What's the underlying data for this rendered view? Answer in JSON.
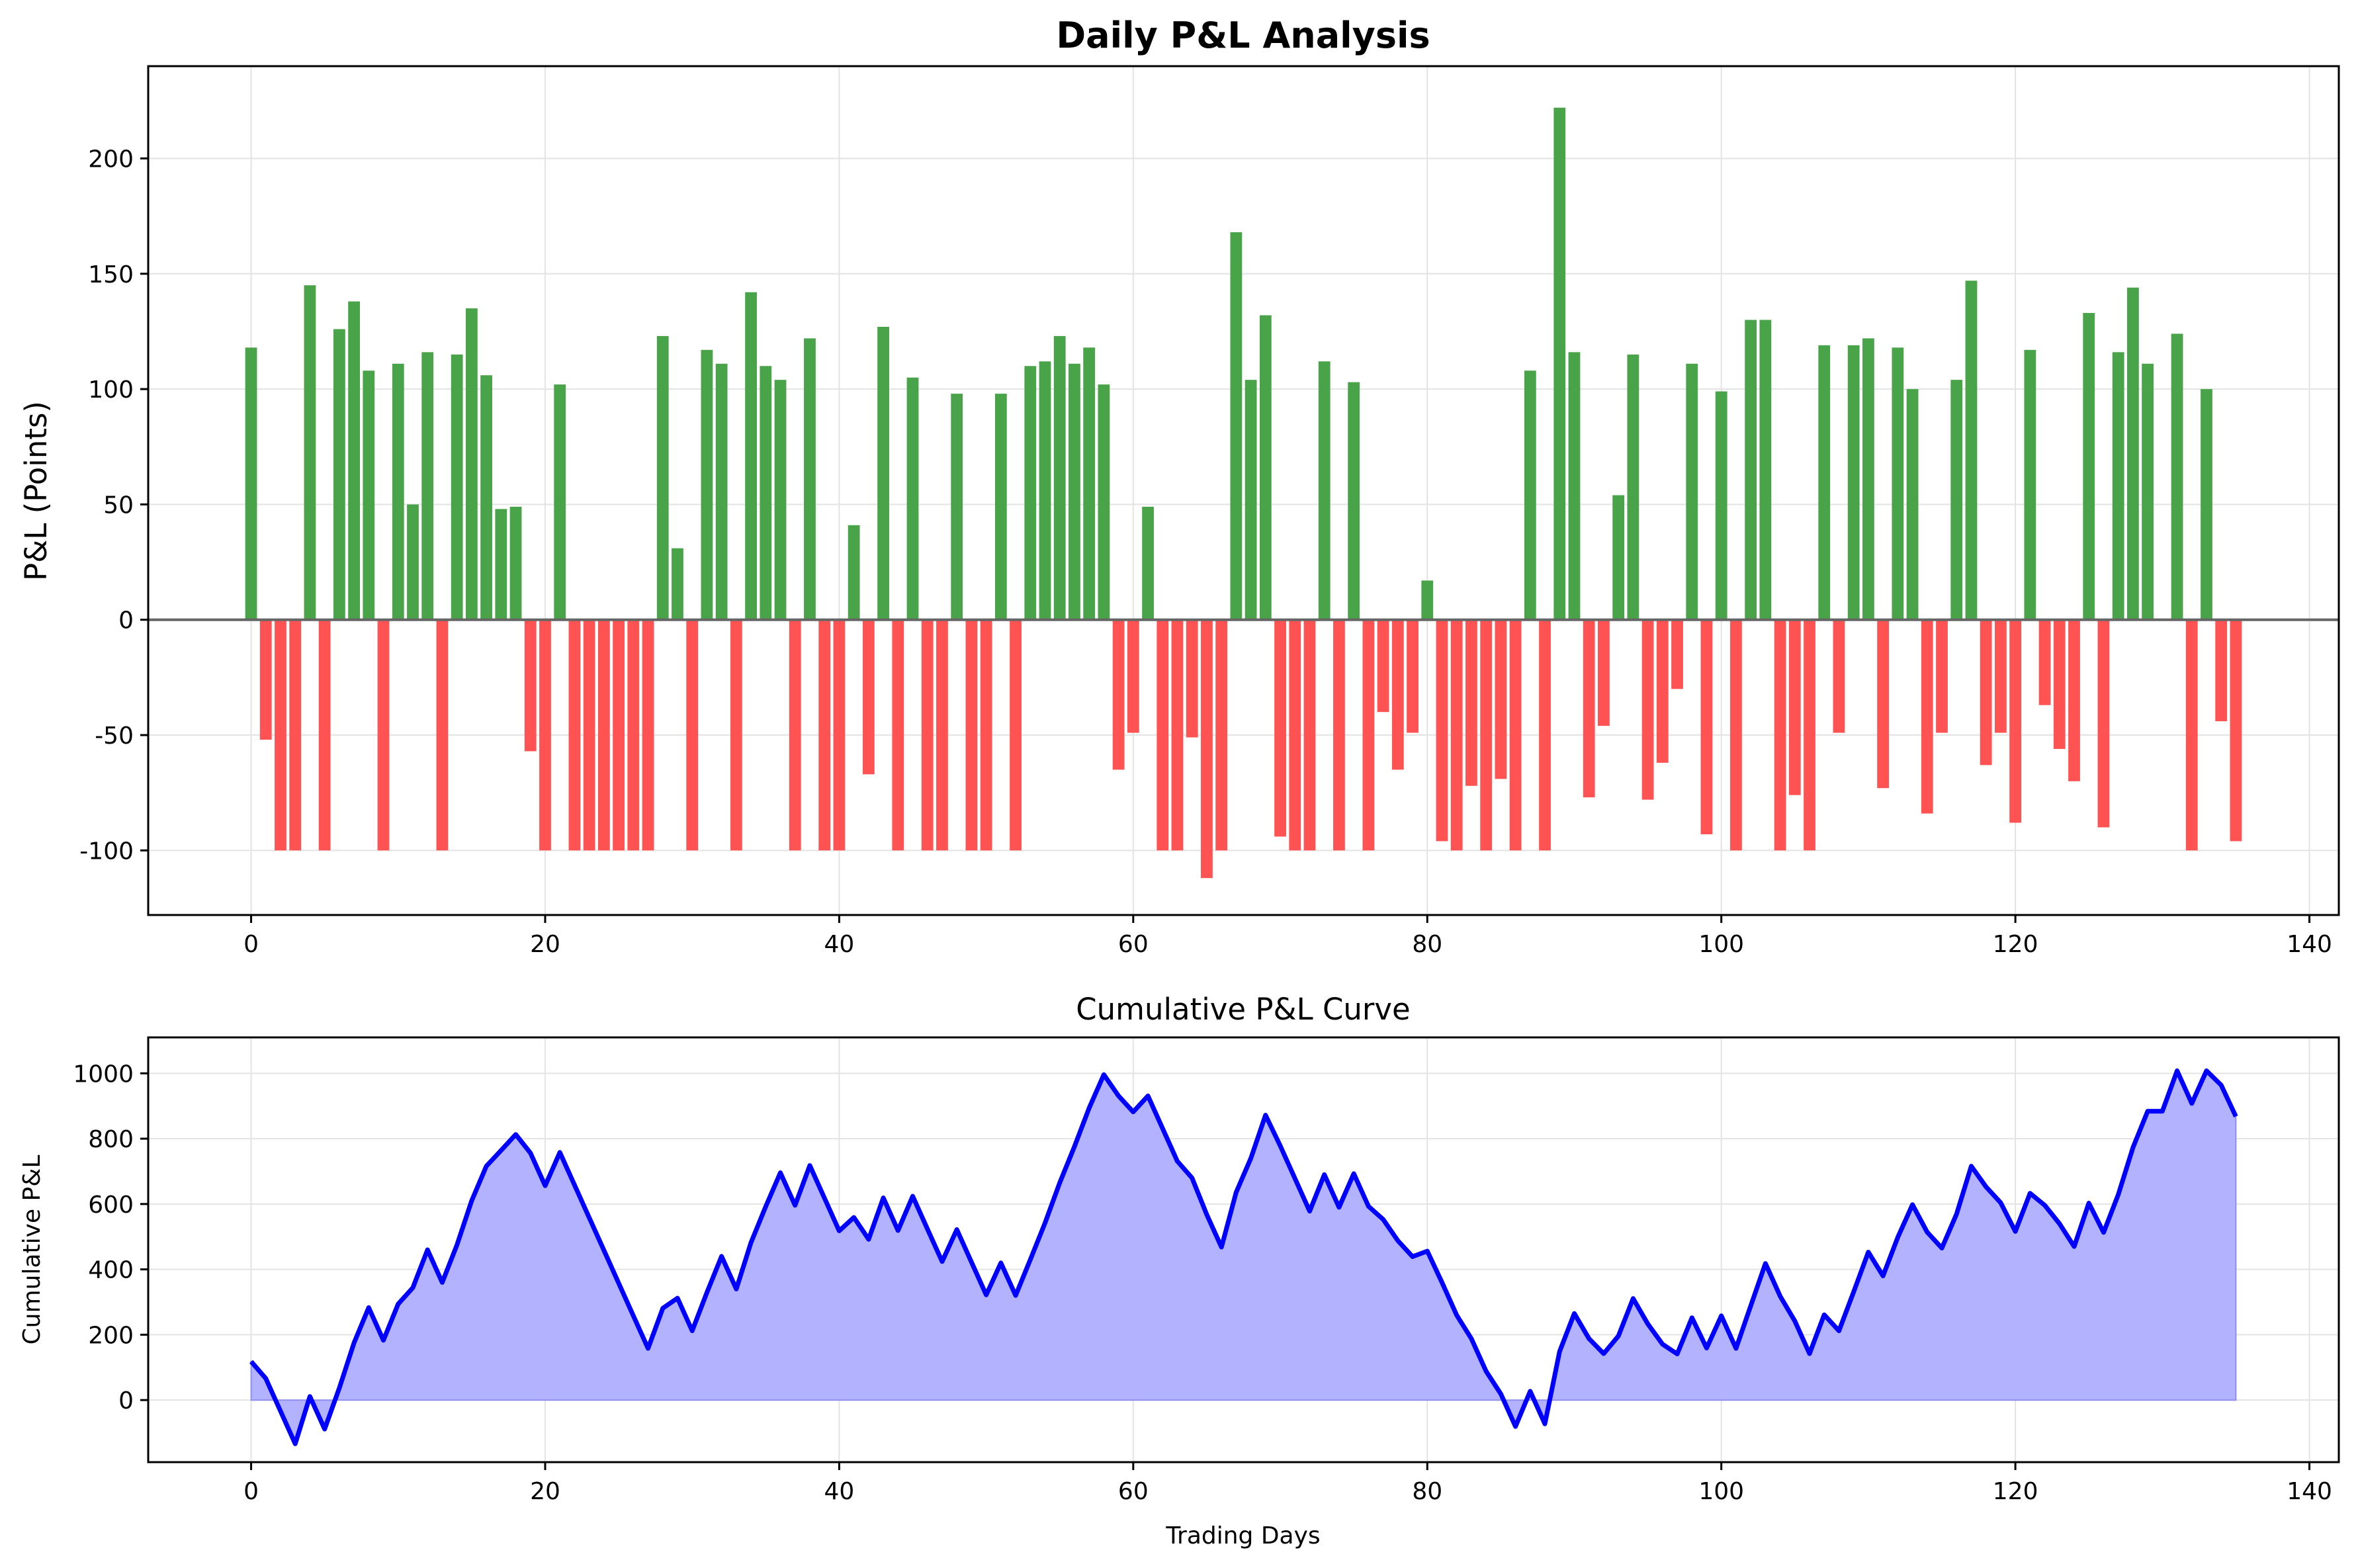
{
  "colors": {
    "positive": "#49a349",
    "negative": "#ff5252",
    "curve": "#0000ff",
    "fill": "#b2b2ff",
    "zero_line": "#666666",
    "grid": "#e3e3e3"
  },
  "chart_data": [
    {
      "type": "bar",
      "title": "Daily P&L Analysis",
      "xlabel": "",
      "ylabel": "P&L (Points)",
      "xlim": [
        -7,
        142
      ],
      "ylim": [
        -128,
        240
      ],
      "xticks": [
        0,
        20,
        40,
        60,
        80,
        100,
        120,
        140
      ],
      "yticks": [
        -100,
        -50,
        0,
        50,
        100,
        150,
        200
      ],
      "ytick_labels": [
        "-100",
        "-50",
        "0",
        "50",
        "100",
        "150",
        "200"
      ],
      "grid": true,
      "zero_line": true,
      "x": "0..135",
      "values": [
        118,
        -52,
        -100,
        -100,
        145,
        -100,
        126,
        138,
        108,
        -100,
        111,
        50,
        116,
        -100,
        115,
        135,
        106,
        48,
        49,
        -57,
        -100,
        102,
        -100,
        -100,
        -100,
        -100,
        -100,
        -100,
        123,
        31,
        -100,
        117,
        111,
        -100,
        142,
        110,
        104,
        -100,
        122,
        -100,
        -100,
        41,
        -67,
        127,
        -100,
        105,
        -100,
        -100,
        98,
        -100,
        -100,
        98,
        -100,
        110,
        112,
        123,
        111,
        118,
        102,
        -65,
        -49,
        49,
        -100,
        -100,
        -51,
        -112,
        -100,
        168,
        104,
        132,
        -94,
        -100,
        -100,
        112,
        -100,
        103,
        -100,
        -40,
        -65,
        -49,
        17,
        -96,
        -100,
        -72,
        -100,
        -69,
        -100,
        108,
        -100,
        222,
        116,
        -77,
        -46,
        54,
        115,
        -78,
        -62,
        -30,
        111,
        -93,
        99,
        -100,
        130,
        130,
        -100,
        -76,
        -100,
        119,
        -49,
        119,
        122,
        -73,
        118,
        100,
        -84,
        -49,
        104,
        147,
        -63,
        -49,
        -88,
        117,
        -37,
        -56,
        -70,
        133,
        -90,
        116,
        144,
        111,
        0,
        124,
        -100,
        100,
        -44,
        -96
      ]
    },
    {
      "type": "area",
      "title": "Cumulative P&L Curve",
      "xlabel": "Trading Days",
      "ylabel": "Cumulative P&L",
      "xlim": [
        -7,
        142
      ],
      "ylim": [
        -190,
        1110
      ],
      "xticks": [
        0,
        20,
        40,
        60,
        80,
        100,
        120,
        140
      ],
      "yticks": [
        0,
        200,
        400,
        600,
        800,
        1000
      ],
      "grid": true,
      "note": "cumulative sum of daily P&L values"
    }
  ]
}
